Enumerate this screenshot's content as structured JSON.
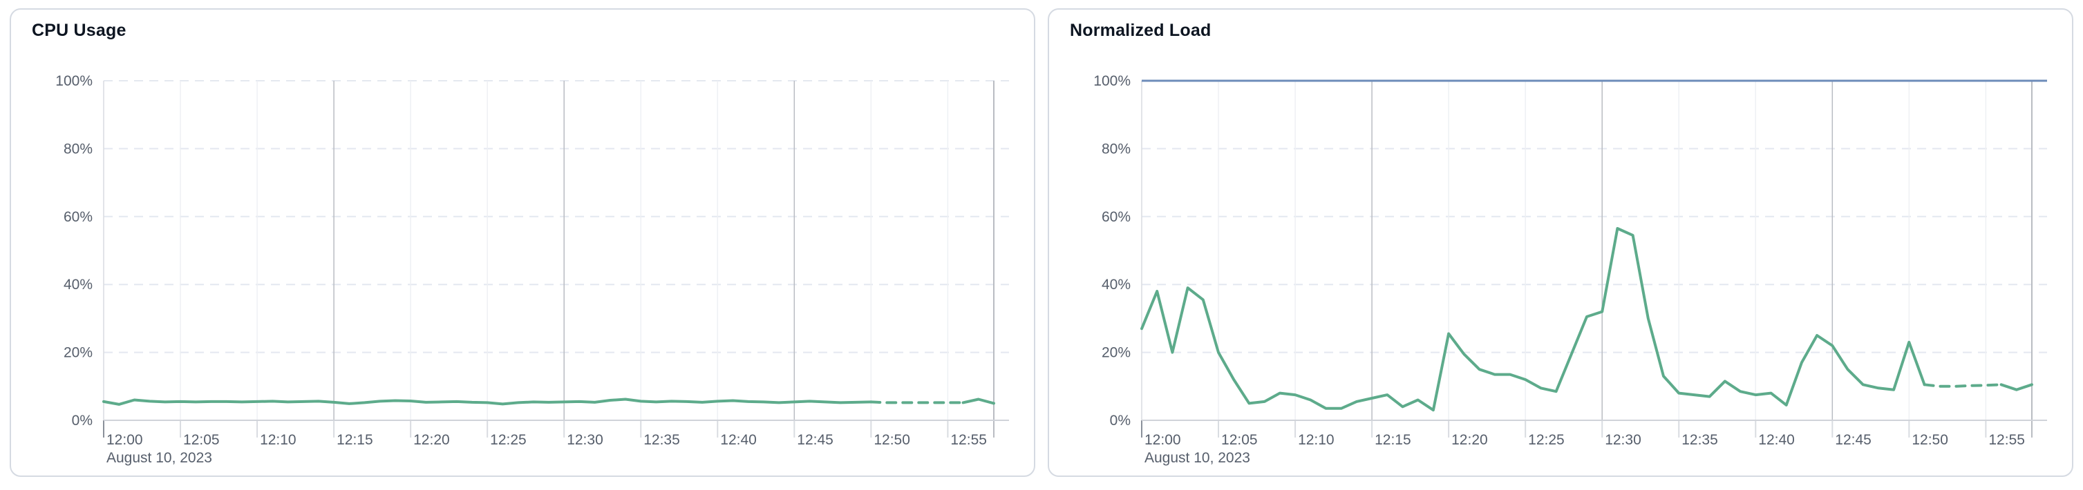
{
  "page": {
    "background": "#ffffff"
  },
  "chart_data": [
    {
      "type": "line",
      "title": "CPU Usage",
      "x_axis_date": "August 10, 2023",
      "x_tick_labels": [
        "12:00",
        "12:05",
        "12:10",
        "12:15",
        "12:20",
        "12:25",
        "12:30",
        "12:35",
        "12:40",
        "12:45",
        "12:50",
        "12:55"
      ],
      "x_tick_minutes": [
        0,
        5,
        10,
        15,
        20,
        25,
        30,
        35,
        40,
        45,
        50,
        55
      ],
      "major_gridline_minutes": [
        15,
        30,
        45
      ],
      "end_line_minute": 58,
      "y_tick_labels": [
        "0%",
        "20%",
        "40%",
        "60%",
        "80%",
        "100%"
      ],
      "y_tick_values": [
        0,
        20,
        40,
        60,
        80,
        100
      ],
      "ylim": [
        0,
        100
      ],
      "grid": "dashed-horizontal",
      "legend": "none",
      "reference_lines": [],
      "series": [
        {
          "name": "cpu-usage",
          "color": "#5dab8b",
          "minutes": [
            0,
            1,
            2,
            3,
            4,
            5,
            6,
            7,
            8,
            9,
            10,
            11,
            12,
            13,
            14,
            15,
            16,
            17,
            18,
            19,
            20,
            21,
            22,
            23,
            24,
            25,
            26,
            27,
            28,
            29,
            30,
            31,
            32,
            33,
            34,
            35,
            36,
            37,
            38,
            39,
            40,
            41,
            42,
            43,
            44,
            45,
            46,
            47,
            48,
            49,
            50,
            51,
            52,
            53,
            54,
            55,
            56,
            57,
            58
          ],
          "values": [
            5.5,
            4.7,
            6.0,
            5.6,
            5.4,
            5.5,
            5.4,
            5.5,
            5.5,
            5.4,
            5.5,
            5.6,
            5.4,
            5.5,
            5.6,
            5.3,
            4.9,
            5.2,
            5.6,
            5.8,
            5.7,
            5.3,
            5.4,
            5.5,
            5.3,
            5.2,
            4.8,
            5.2,
            5.4,
            5.3,
            5.4,
            5.5,
            5.3,
            5.9,
            6.2,
            5.6,
            5.4,
            5.6,
            5.5,
            5.3,
            5.6,
            5.8,
            5.5,
            5.4,
            5.2,
            5.4,
            5.6,
            5.4,
            5.2,
            5.3,
            5.4,
            5.2,
            5.2,
            5.2,
            5.2,
            5.2,
            5.2,
            6.2,
            5.0
          ],
          "segments": [
            {
              "from": 0,
              "to": 50,
              "dashed": false
            },
            {
              "from": 50,
              "to": 56,
              "dashed": true
            },
            {
              "from": 56,
              "to": 58,
              "dashed": false
            }
          ]
        }
      ]
    },
    {
      "type": "line",
      "title": "Normalized Load",
      "x_axis_date": "August 10, 2023",
      "x_tick_labels": [
        "12:00",
        "12:05",
        "12:10",
        "12:15",
        "12:20",
        "12:25",
        "12:30",
        "12:35",
        "12:40",
        "12:45",
        "12:50",
        "12:55"
      ],
      "x_tick_minutes": [
        0,
        5,
        10,
        15,
        20,
        25,
        30,
        35,
        40,
        45,
        50,
        55
      ],
      "major_gridline_minutes": [
        15,
        30,
        45
      ],
      "end_line_minute": 58,
      "y_tick_labels": [
        "0%",
        "20%",
        "40%",
        "60%",
        "80%",
        "100%"
      ],
      "y_tick_values": [
        0,
        20,
        40,
        60,
        80,
        100
      ],
      "ylim": [
        0,
        100
      ],
      "grid": "dashed-horizontal",
      "legend": "none",
      "reference_lines": [
        {
          "name": "limit-100pct",
          "value": 100,
          "color": "#6d8cba"
        }
      ],
      "series": [
        {
          "name": "normalized-load",
          "color": "#5dab8b",
          "minutes": [
            0,
            1,
            2,
            3,
            4,
            5,
            6,
            7,
            8,
            9,
            10,
            11,
            12,
            13,
            14,
            15,
            16,
            17,
            18,
            19,
            20,
            21,
            22,
            23,
            24,
            25,
            26,
            27,
            28,
            29,
            30,
            31,
            32,
            33,
            34,
            35,
            36,
            37,
            38,
            39,
            40,
            41,
            42,
            43,
            44,
            45,
            46,
            47,
            48,
            49,
            50,
            51,
            52,
            53,
            54,
            55,
            56,
            57,
            58
          ],
          "values": [
            27,
            38,
            20,
            39,
            35.5,
            20,
            12,
            5,
            5.5,
            8,
            7.5,
            6,
            3.5,
            3.5,
            5.5,
            6.5,
            7.5,
            4,
            6,
            3,
            25.5,
            19.5,
            15,
            13.5,
            13.5,
            12,
            9.5,
            8.5,
            19.5,
            30.5,
            32,
            56.5,
            54.5,
            30,
            13,
            8,
            7.5,
            7,
            11.5,
            8.5,
            7.5,
            8,
            4.5,
            17,
            25,
            22,
            15,
            10.5,
            9.5,
            9,
            23,
            10.5,
            10,
            10,
            10.2,
            10.3,
            10.5,
            9,
            10.5
          ],
          "segments": [
            {
              "from": 0,
              "to": 51,
              "dashed": false
            },
            {
              "from": 51,
              "to": 56,
              "dashed": true
            },
            {
              "from": 56,
              "to": 58,
              "dashed": false
            }
          ]
        }
      ]
    }
  ]
}
